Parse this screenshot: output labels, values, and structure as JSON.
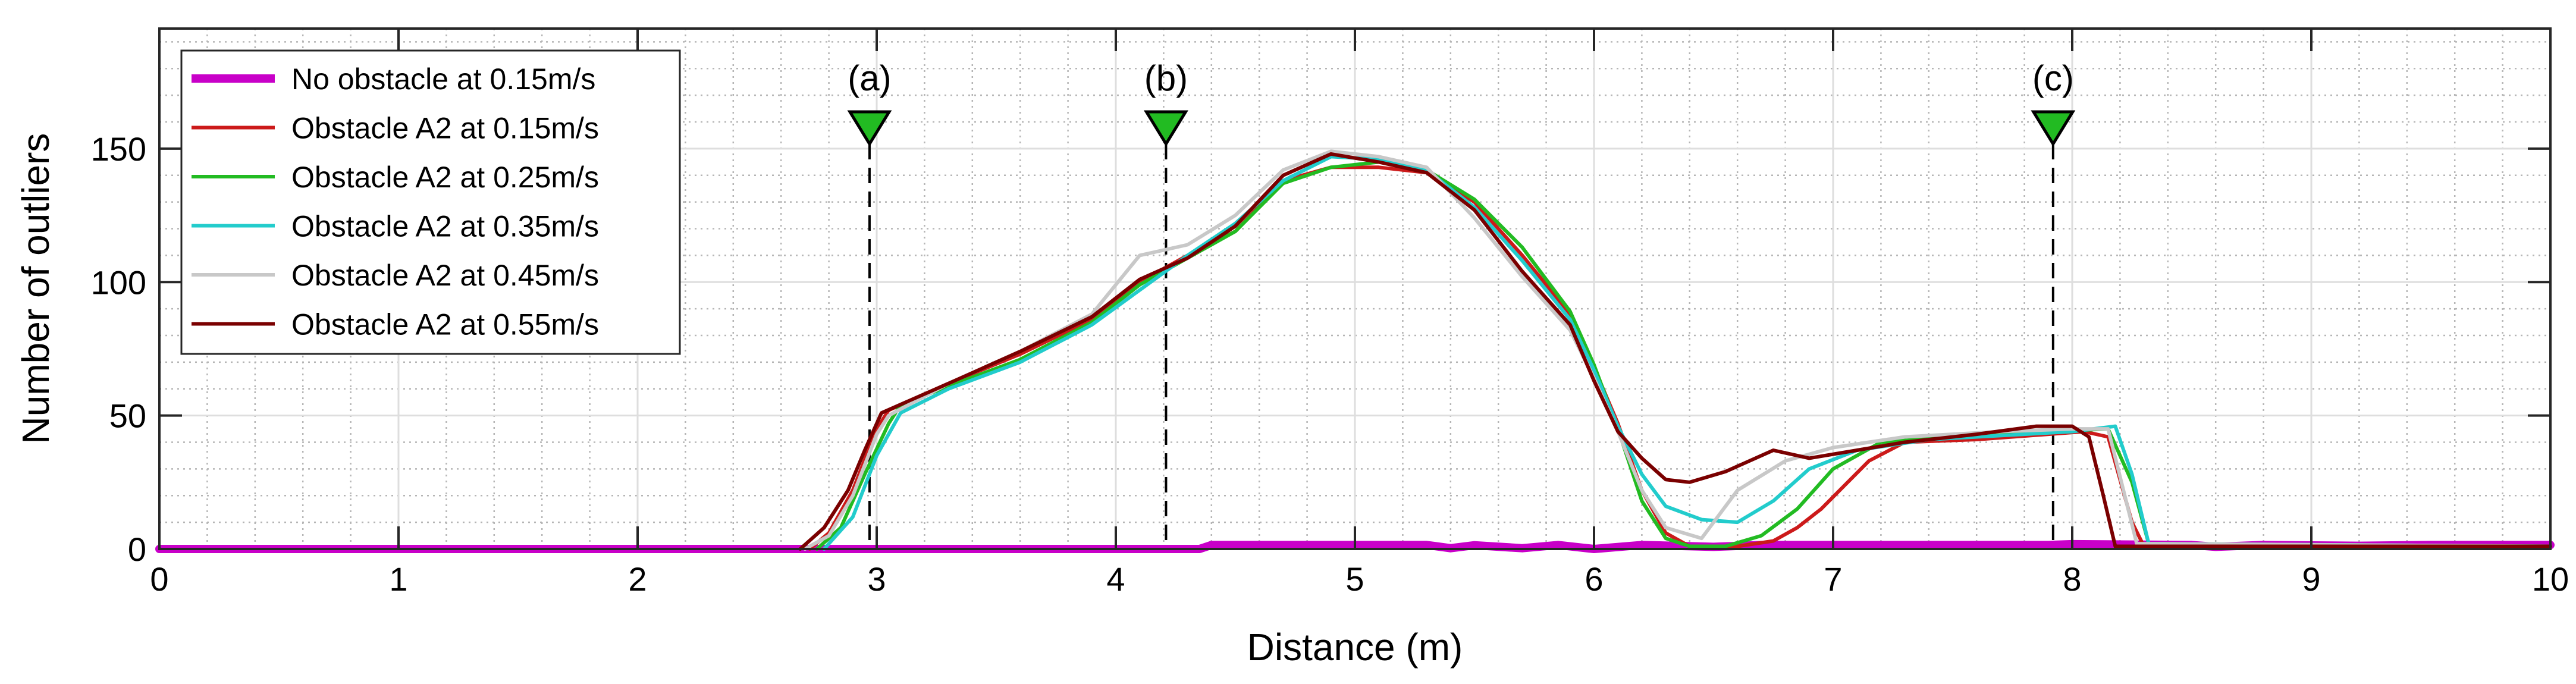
{
  "chart_data": {
    "type": "line",
    "title": "",
    "xlabel": "Distance (m)",
    "ylabel": "Number of outliers",
    "xlim": [
      0,
      10
    ],
    "ylim": [
      0,
      195
    ],
    "grid": "major and minor",
    "legend_position": "top-left",
    "xticks": [
      0,
      1,
      2,
      3,
      4,
      5,
      6,
      7,
      8,
      9,
      10
    ],
    "xtick_labels": [
      "0",
      "1",
      "2",
      "3",
      "4",
      "5",
      "6",
      "7",
      "8",
      "9",
      "10"
    ],
    "yticks": [
      0,
      50,
      100,
      150
    ],
    "ytick_labels": [
      "0",
      "50",
      "100",
      "150"
    ],
    "events": [
      {
        "label": "(a)",
        "x": 2.97
      },
      {
        "label": "(b)",
        "x": 4.21
      },
      {
        "label": "(c)",
        "x": 7.92
      }
    ],
    "event_marker_color": "#22bb22",
    "series": [
      {
        "name": "No obstacle at 0.15m/s",
        "color": "#c800c8",
        "thick": true,
        "points": [
          [
            0,
            0
          ],
          [
            4.35,
            0
          ],
          [
            4.4,
            1.5
          ],
          [
            5.3,
            1.5
          ],
          [
            5.4,
            0.3
          ],
          [
            5.5,
            1.4
          ],
          [
            5.7,
            0.3
          ],
          [
            5.85,
            1.5
          ],
          [
            6.0,
            0
          ],
          [
            6.2,
            1.5
          ],
          [
            6.5,
            0.8
          ],
          [
            6.7,
            1.5
          ],
          [
            7.9,
            1.5
          ],
          [
            8.0,
            1.8
          ],
          [
            8.5,
            1.5
          ],
          [
            8.6,
            0.8
          ],
          [
            8.8,
            1.5
          ],
          [
            9.2,
            1.2
          ],
          [
            9.5,
            1.5
          ],
          [
            10,
            1.5
          ]
        ]
      },
      {
        "name": "Obstacle A2 at 0.15m/s",
        "color": "#cc1a1a",
        "thick": false,
        "points": [
          [
            2.72,
            0
          ],
          [
            2.8,
            6
          ],
          [
            2.9,
            22
          ],
          [
            3.0,
            45
          ],
          [
            3.05,
            52
          ],
          [
            3.3,
            62
          ],
          [
            3.6,
            73
          ],
          [
            3.9,
            86
          ],
          [
            4.1,
            100
          ],
          [
            4.3,
            110
          ],
          [
            4.5,
            119
          ],
          [
            4.7,
            138
          ],
          [
            4.9,
            143
          ],
          [
            5.1,
            143
          ],
          [
            5.3,
            141
          ],
          [
            5.5,
            130
          ],
          [
            5.7,
            110
          ],
          [
            5.9,
            88
          ],
          [
            6.0,
            68
          ],
          [
            6.1,
            47
          ],
          [
            6.2,
            22
          ],
          [
            6.3,
            6
          ],
          [
            6.4,
            1
          ],
          [
            6.6,
            1
          ],
          [
            6.75,
            3
          ],
          [
            6.85,
            8
          ],
          [
            6.95,
            15
          ],
          [
            7.05,
            24
          ],
          [
            7.15,
            33
          ],
          [
            7.3,
            40
          ],
          [
            7.6,
            41
          ],
          [
            7.9,
            43
          ],
          [
            8.05,
            44
          ],
          [
            8.15,
            42
          ],
          [
            8.25,
            10
          ],
          [
            8.3,
            1
          ],
          [
            10,
            1
          ]
        ]
      },
      {
        "name": "Obstacle A2 at 0.25m/s",
        "color": "#22bb22",
        "thick": false,
        "points": [
          [
            2.75,
            0
          ],
          [
            2.85,
            8
          ],
          [
            2.95,
            28
          ],
          [
            3.05,
            47
          ],
          [
            3.1,
            54
          ],
          [
            3.3,
            61
          ],
          [
            3.6,
            71
          ],
          [
            3.9,
            85
          ],
          [
            4.1,
            99
          ],
          [
            4.3,
            109
          ],
          [
            4.5,
            119
          ],
          [
            4.7,
            137
          ],
          [
            4.9,
            143
          ],
          [
            5.1,
            145
          ],
          [
            5.3,
            142
          ],
          [
            5.5,
            131
          ],
          [
            5.7,
            113
          ],
          [
            5.9,
            89
          ],
          [
            6.0,
            69
          ],
          [
            6.1,
            45
          ],
          [
            6.2,
            18
          ],
          [
            6.3,
            4
          ],
          [
            6.4,
            1
          ],
          [
            6.55,
            1
          ],
          [
            6.7,
            5
          ],
          [
            6.85,
            15
          ],
          [
            7.0,
            30
          ],
          [
            7.2,
            40
          ],
          [
            7.5,
            42
          ],
          [
            7.9,
            44
          ],
          [
            8.15,
            45
          ],
          [
            8.25,
            25
          ],
          [
            8.32,
            2
          ],
          [
            10,
            1
          ]
        ]
      },
      {
        "name": "Obstacle A2 at 0.35m/s",
        "color": "#22cccc",
        "thick": false,
        "points": [
          [
            2.78,
            0
          ],
          [
            2.9,
            12
          ],
          [
            3.0,
            35
          ],
          [
            3.1,
            51
          ],
          [
            3.3,
            60
          ],
          [
            3.6,
            70
          ],
          [
            3.9,
            84
          ],
          [
            4.1,
            97
          ],
          [
            4.3,
            110
          ],
          [
            4.5,
            122
          ],
          [
            4.7,
            138
          ],
          [
            4.9,
            147
          ],
          [
            5.1,
            146
          ],
          [
            5.3,
            142
          ],
          [
            5.5,
            128
          ],
          [
            5.7,
            108
          ],
          [
            5.9,
            86
          ],
          [
            6.0,
            67
          ],
          [
            6.1,
            46
          ],
          [
            6.2,
            28
          ],
          [
            6.3,
            16
          ],
          [
            6.45,
            11
          ],
          [
            6.6,
            10
          ],
          [
            6.75,
            18
          ],
          [
            6.9,
            30
          ],
          [
            7.1,
            37
          ],
          [
            7.4,
            41
          ],
          [
            7.8,
            43
          ],
          [
            8.0,
            44
          ],
          [
            8.18,
            46
          ],
          [
            8.25,
            28
          ],
          [
            8.32,
            2
          ],
          [
            10,
            1
          ]
        ]
      },
      {
        "name": "Obstacle A2 at 0.45m/s",
        "color": "#c8c8c8",
        "thick": false,
        "points": [
          [
            2.7,
            0
          ],
          [
            2.8,
            5
          ],
          [
            2.9,
            20
          ],
          [
            3.0,
            43
          ],
          [
            3.05,
            50
          ],
          [
            3.3,
            62
          ],
          [
            3.6,
            74
          ],
          [
            3.9,
            88
          ],
          [
            4.1,
            110
          ],
          [
            4.3,
            114
          ],
          [
            4.5,
            125
          ],
          [
            4.7,
            142
          ],
          [
            4.9,
            149
          ],
          [
            5.1,
            147
          ],
          [
            5.3,
            143
          ],
          [
            5.5,
            124
          ],
          [
            5.7,
            102
          ],
          [
            5.9,
            82
          ],
          [
            6.0,
            64
          ],
          [
            6.1,
            44
          ],
          [
            6.2,
            22
          ],
          [
            6.3,
            8
          ],
          [
            6.45,
            4
          ],
          [
            6.6,
            22
          ],
          [
            6.8,
            33
          ],
          [
            7.0,
            38
          ],
          [
            7.3,
            42
          ],
          [
            7.7,
            44
          ],
          [
            8.0,
            45
          ],
          [
            8.15,
            45
          ],
          [
            8.22,
            20
          ],
          [
            8.27,
            2
          ],
          [
            10,
            1
          ]
        ]
      },
      {
        "name": "Obstacle A2 at 0.55m/s",
        "color": "#7a0000",
        "thick": false,
        "points": [
          [
            2.68,
            0
          ],
          [
            2.78,
            8
          ],
          [
            2.88,
            22
          ],
          [
            2.95,
            37
          ],
          [
            3.02,
            51
          ],
          [
            3.3,
            62
          ],
          [
            3.6,
            74
          ],
          [
            3.9,
            87
          ],
          [
            4.1,
            101
          ],
          [
            4.3,
            109
          ],
          [
            4.5,
            121
          ],
          [
            4.7,
            140
          ],
          [
            4.9,
            148
          ],
          [
            5.1,
            145
          ],
          [
            5.3,
            141
          ],
          [
            5.5,
            127
          ],
          [
            5.7,
            104
          ],
          [
            5.9,
            84
          ],
          [
            6.0,
            63
          ],
          [
            6.1,
            44
          ],
          [
            6.2,
            34
          ],
          [
            6.3,
            26
          ],
          [
            6.4,
            25
          ],
          [
            6.55,
            29
          ],
          [
            6.75,
            37
          ],
          [
            6.9,
            34
          ],
          [
            7.1,
            37
          ],
          [
            7.3,
            40
          ],
          [
            7.6,
            43
          ],
          [
            7.85,
            46
          ],
          [
            8.0,
            46
          ],
          [
            8.07,
            42
          ],
          [
            8.13,
            20
          ],
          [
            8.18,
            1
          ],
          [
            10,
            1
          ]
        ]
      }
    ]
  }
}
